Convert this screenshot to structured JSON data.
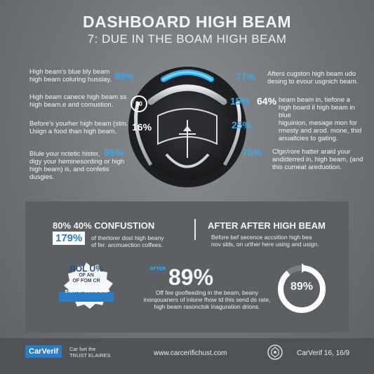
{
  "header": {
    "title": "DASHBOARD HIGH BEAM",
    "subtitle": "7: DUE IN THE BOAM  HIGH BEAM"
  },
  "left_items": [
    {
      "text": "High beam's blue bly beam\nhigh beam coluring husslay,",
      "pct": "89%"
    },
    {
      "text": "High beam canece high beam ss\nhigh beam.e and comustion.",
      "pct": "50"
    },
    {
      "text": "Before's yourher high beam (stm.\nUsign a food than high beam.",
      "pct": "16%"
    },
    {
      "text": "Blule your nctetic hister,\ndigy your heminesording or high\nhigh beam) is, and confetis dusgies.",
      "pct": "85%"
    }
  ],
  "right_items": [
    {
      "text": "Afters cugston high beam udo\ndesing to evour usgnich beam.",
      "pct": "77%"
    },
    {
      "text": "beam beam in, tiefone a\nhigh board il high beam in blue\nhiguinion, mesage mon for\nrmesty and arod. mone, thid\nanualtcies to gating.",
      "pct": "15%",
      "pct2": "64%"
    },
    {
      "pct": "25%"
    },
    {
      "text": "Cfgir/rore hatter araid your\nandiderred in, high beam, (and\nthis cumeat areduotion.",
      "pct": "75%"
    }
  ],
  "panel": {
    "left_heading": "80% 40% CONFUSTION",
    "left_pct": "179%",
    "left_text": "of therlorer dost high beany\nof fer. arcmuection coffees.",
    "right_heading": "AFTER AFTER HIGH BEAM",
    "right_text": "Before bef secence accsition high bea\nnov slds, on urther here using and usign.",
    "badge_lines": [
      "ROL U%",
      "OF AN",
      "OF FOM CR",
      "ROAM CANDI NAME",
      "BNEW OF BEARS LINE"
    ],
    "after_label": "AFTER",
    "center_pct": "89%",
    "center_text": "Off fee goofleeding in the beam, beany\ninorqouaners of inlone fhow td this send ds rate,\nhigh beam rasonctok inaguration drions.",
    "ring_pct": "89%",
    "ring_value": 0.89
  },
  "footer": {
    "brand": "CarVerif",
    "tagline": "Car fort the\nTRUST ELAIRES",
    "url": "www.carcerifichust.com",
    "right_text": "CarVerif 16, 16/9"
  },
  "colors": {
    "accent": "#3fa8e8",
    "panel": "#5c5f63",
    "footer": "#4f5256"
  }
}
